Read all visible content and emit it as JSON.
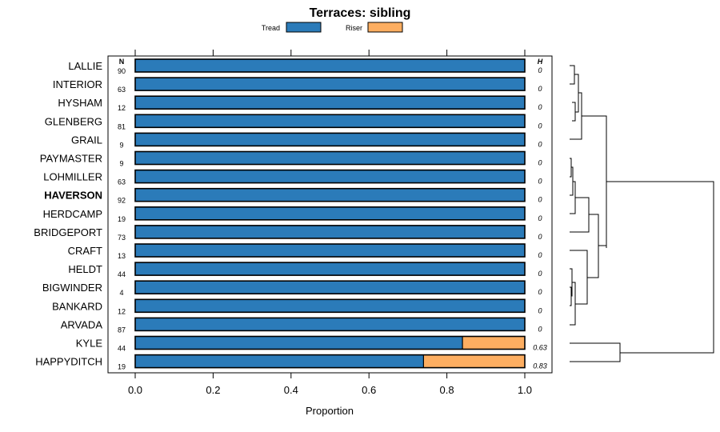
{
  "chart_data": {
    "type": "bar",
    "orientation": "horizontal",
    "stacked": true,
    "title": "Terraces: sibling",
    "xlabel": "Proportion",
    "xlim": [
      -0.07,
      1.07
    ],
    "xticks": [
      "0.0",
      "0.2",
      "0.4",
      "0.6",
      "0.8",
      "1.0"
    ],
    "xtick_values": [
      0,
      0.2,
      0.4,
      0.6,
      0.8,
      1.0
    ],
    "n_header": "N",
    "h_header": "H",
    "highlighted": "HAVERSON",
    "legend": [
      {
        "name": "Tread",
        "color": "#2b7bb9"
      },
      {
        "name": "Riser",
        "color": "#fdae61"
      }
    ],
    "categories": [
      "LALLIE",
      "INTERIOR",
      "HYSHAM",
      "GLENBERG",
      "GRAIL",
      "PAYMASTER",
      "LOHMILLER",
      "HAVERSON",
      "HERDCAMP",
      "BRIDGEPORT",
      "CRAFT",
      "HELDT",
      "BIGWINDER",
      "BANKARD",
      "ARVADA",
      "KYLE",
      "HAPPYDITCH"
    ],
    "n": [
      "90",
      "63",
      "12",
      "81",
      "9",
      "9",
      "63",
      "92",
      "19",
      "73",
      "13",
      "44",
      "4",
      "12",
      "87",
      "44",
      "19"
    ],
    "h": [
      "0",
      "0",
      "0",
      "0",
      "0",
      "0",
      "0",
      "0",
      "0",
      "0",
      "0",
      "0",
      "0",
      "0",
      "0",
      "0.63",
      "0.83"
    ],
    "series": [
      {
        "name": "Tread",
        "values": [
          1,
          1,
          1,
          1,
          1,
          1,
          1,
          1,
          1,
          1,
          1,
          1,
          1,
          1,
          1,
          0.84,
          0.74
        ]
      },
      {
        "name": "Riser",
        "values": [
          0,
          0,
          0,
          0,
          0,
          0,
          0,
          0,
          0,
          0,
          0,
          0,
          0,
          0,
          0,
          0.16,
          0.26
        ]
      }
    ]
  }
}
